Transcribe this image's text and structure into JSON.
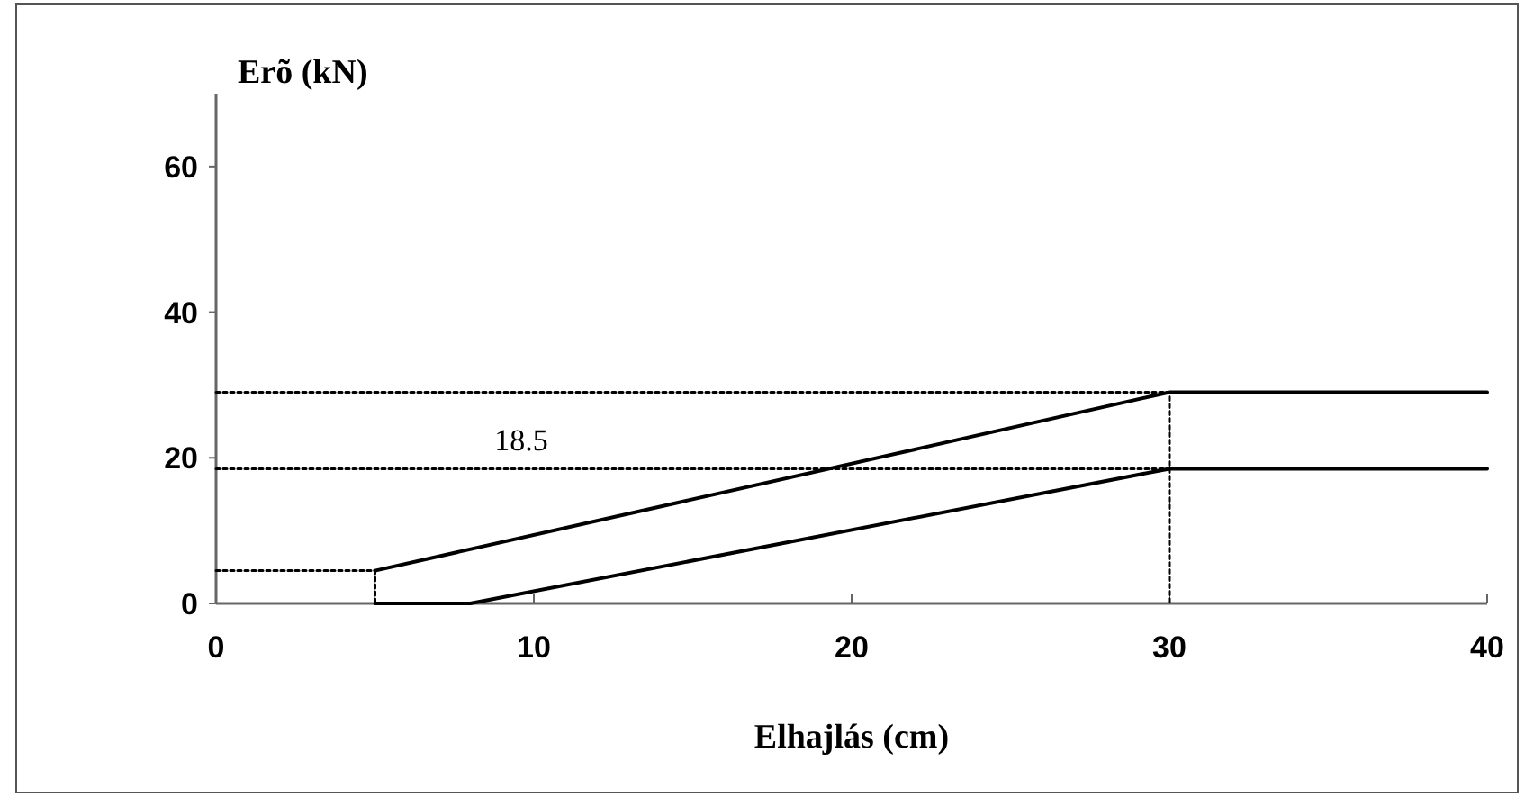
{
  "chart_data": {
    "type": "line",
    "xlabel": "Elhajlás (cm)",
    "ylabel": "Erõ (kN)",
    "xlim": [
      0,
      40
    ],
    "ylim": [
      0,
      70
    ],
    "xticks": [
      0,
      10,
      20,
      30,
      40
    ],
    "yticks": [
      0,
      20,
      40,
      60
    ],
    "grid": false,
    "marker": "none",
    "series": [
      {
        "color": "#000000",
        "x": [
          5,
          30,
          40
        ],
        "values": [
          4.5,
          29,
          29
        ],
        "line_style": "solid"
      },
      {
        "color": "#000000",
        "x": [
          5,
          8,
          30,
          40
        ],
        "values": [
          0,
          0,
          18.5,
          18.5
        ],
        "line_style": "solid"
      },
      {
        "color": "#000000",
        "x": [
          0,
          30,
          30
        ],
        "values": [
          29,
          29,
          0
        ],
        "line_style": "dotted"
      },
      {
        "color": "#000000",
        "x": [
          0,
          30
        ],
        "values": [
          18.5,
          18.5
        ],
        "line_style": "dotted"
      },
      {
        "color": "#000000",
        "x": [
          0,
          5,
          5
        ],
        "values": [
          4.5,
          4.5,
          0
        ],
        "line_style": "dotted"
      }
    ],
    "annotations": [
      {
        "text": "18.5",
        "x": 9.6,
        "y": 18.5
      }
    ]
  }
}
